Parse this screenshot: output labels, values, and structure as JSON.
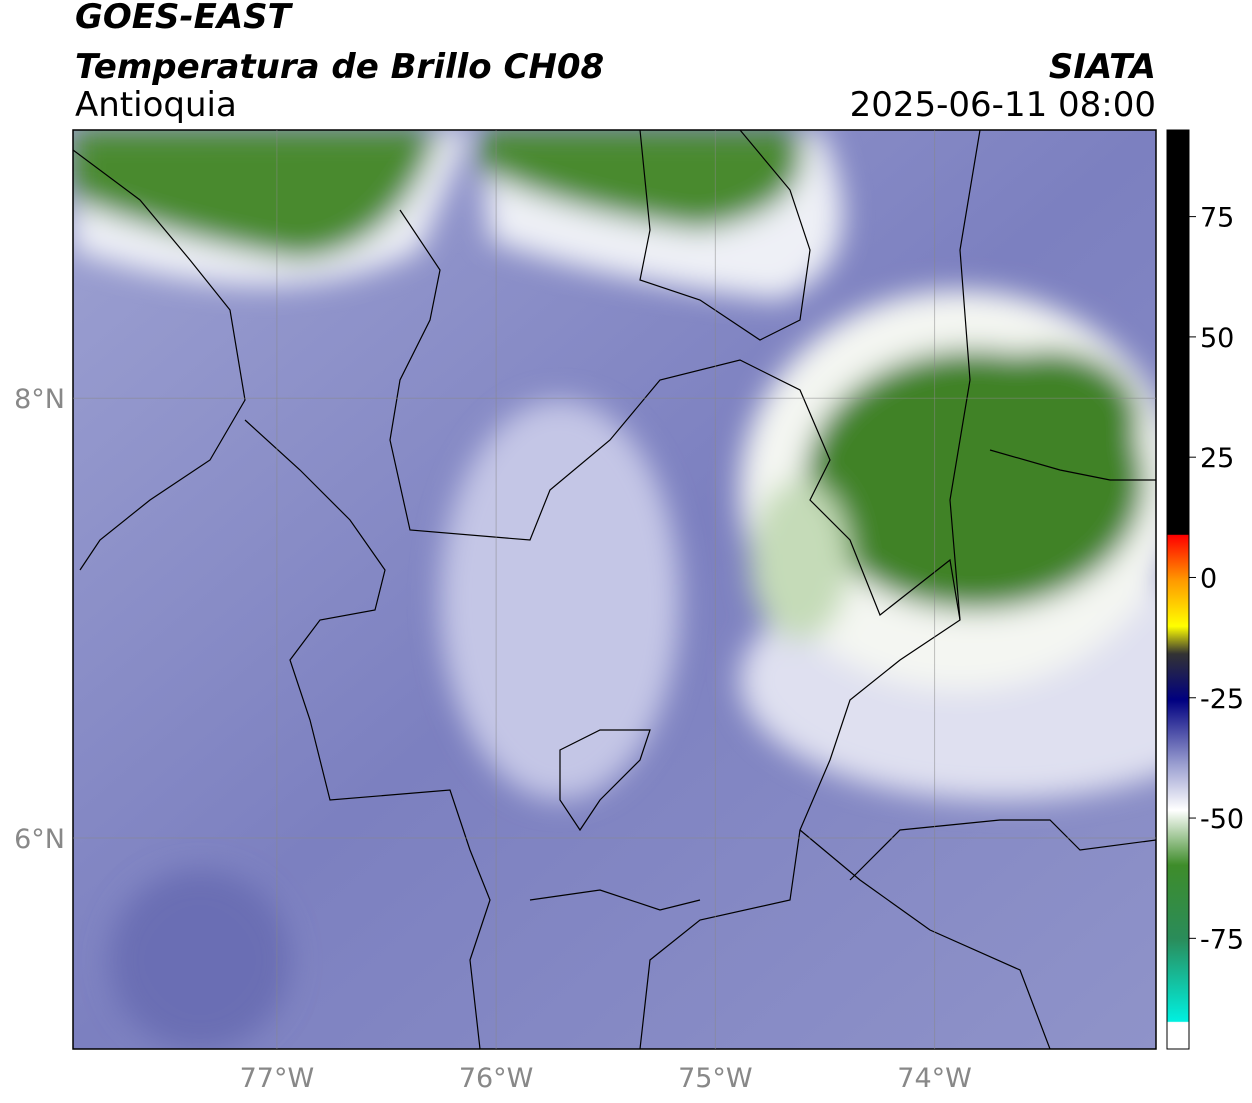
{
  "header": {
    "title": "GOES-EAST",
    "subtitle": "Temperatura de Brillo CH08",
    "region": "Antioquia",
    "source": "SIATA",
    "datetime": "2025-06-11 08:00"
  },
  "map": {
    "xlim": [
      -77.93,
      -72.99
    ],
    "ylim": [
      5.04,
      9.22
    ],
    "xticks": [
      {
        "value": -77,
        "label": "77°W"
      },
      {
        "value": -76,
        "label": "76°W"
      },
      {
        "value": -75,
        "label": "75°W"
      },
      {
        "value": -74,
        "label": "74°W"
      }
    ],
    "yticks": [
      {
        "value": 6,
        "label": "6°N"
      },
      {
        "value": 8,
        "label": "8°N"
      }
    ],
    "grid": true
  },
  "colorbar": {
    "lim": [
      -98,
      93
    ],
    "ticks": [
      -75,
      -50,
      -25,
      0,
      25,
      50,
      75
    ]
  }
}
